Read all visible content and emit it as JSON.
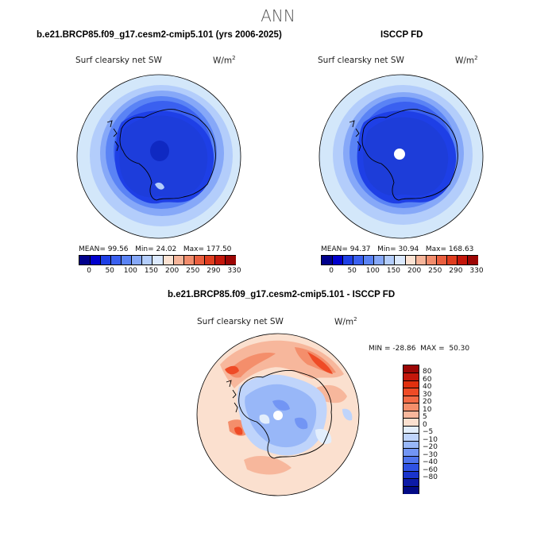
{
  "title": "ANN",
  "colors": {
    "ocean_fill": "#d3e7fa",
    "outline": "#000000"
  },
  "panels": [
    {
      "id": "model",
      "title": "b.e21.BRCP85.f09_g17.cesm2-cmip5.101 (yrs 2006-2025)",
      "variable": "Surf clearsky net SW",
      "units_base": "W/m",
      "units_exp": "2",
      "stats": {
        "mean_label": "MEAN=",
        "mean": "99.56",
        "min_label": "Min=",
        "min": "24.02",
        "max_label": "Max=",
        "max": "177.50"
      }
    },
    {
      "id": "obs",
      "title": "ISCCP FD",
      "variable": "Surf clearsky net SW",
      "units_base": "W/m",
      "units_exp": "2",
      "stats": {
        "mean_label": "MEAN=",
        "mean": "94.37",
        "min_label": "Min=",
        "min": "30.94",
        "max_label": "Max=",
        "max": "168.63"
      }
    },
    {
      "id": "diff",
      "title": "b.e21.BRCP85.f09_g17.cesm2-cmip5.101 - ISCCP FD",
      "variable": "Surf clearsky net SW",
      "units_base": "W/m",
      "units_exp": "2",
      "stats_line": "MIN = -28.86  MAX =  50.30"
    }
  ],
  "horizontal_colorbar": {
    "colors": [
      "#00008b",
      "#0000cd",
      "#1e3fe6",
      "#3a60f0",
      "#5a83f5",
      "#86a8f8",
      "#b3cdfb",
      "#dbe9fd",
      "#fbe2d2",
      "#f6b59a",
      "#f18c6c",
      "#ea5f3f",
      "#df3d1f",
      "#c4170b",
      "#9c0605"
    ],
    "tick_labels": [
      "0",
      "50",
      "100",
      "150",
      "200",
      "250",
      "290",
      "330"
    ]
  },
  "vertical_colorbar": {
    "colors_top_to_bottom": [
      "#9c0605",
      "#c4170b",
      "#e1300f",
      "#ef4b26",
      "#f46a45",
      "#f48e6b",
      "#f7b79c",
      "#fbe0cf",
      "#e3eefc",
      "#bfd4fb",
      "#98b7f8",
      "#7295f4",
      "#4f74ee",
      "#2f52e4",
      "#1a34cc",
      "#0c1aa6",
      "#020a85"
    ],
    "tick_labels": [
      "80",
      "60",
      "40",
      "30",
      "20",
      "10",
      "5",
      "0",
      "−5",
      "−10",
      "−20",
      "−30",
      "−40",
      "−60",
      "−80"
    ]
  }
}
